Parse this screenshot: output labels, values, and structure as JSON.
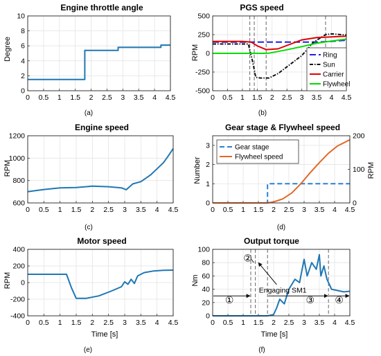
{
  "panels": [
    {
      "id": "a",
      "label": "(a)",
      "title": "Engine throttle angle",
      "ylabel": "Degree",
      "ylabel2": "",
      "xlabel": ""
    },
    {
      "id": "b",
      "label": "(b)",
      "title": "PGS speed",
      "ylabel": "RPM",
      "ylabel2": "",
      "xlabel": ""
    },
    {
      "id": "c",
      "label": "(c)",
      "title": "Engine speed",
      "ylabel": "RPM",
      "ylabel2": "",
      "xlabel": ""
    },
    {
      "id": "d",
      "label": "(d)",
      "title": "Gear stage & Flywheel speed",
      "ylabel": "Number",
      "ylabel2": "RPM",
      "xlabel": ""
    },
    {
      "id": "e",
      "label": "(e)",
      "title": "Motor speed",
      "ylabel": "RPM",
      "ylabel2": "",
      "xlabel": "Time [s]"
    },
    {
      "id": "f",
      "label": "(f)",
      "title": "Output torque",
      "ylabel": "Nm",
      "ylabel2": "",
      "xlabel": "Time [s]"
    }
  ],
  "chart_data": [
    {
      "type": "line",
      "panel": "a",
      "title": "Engine throttle angle",
      "xlabel": "",
      "ylabel": "Degree",
      "xlim": [
        0,
        4.5
      ],
      "ylim": [
        0,
        10
      ],
      "xticks": [
        "0",
        "0.5",
        "1",
        "1.5",
        "2",
        "2.5",
        "3",
        "3.5",
        "4",
        "4.5"
      ],
      "yticks": [
        "0",
        "2",
        "4",
        "6",
        "8",
        "10"
      ],
      "grid": true,
      "legend": "none",
      "series": [
        {
          "color": "#1f77b4",
          "dash": "",
          "x": [
            0,
            1.8,
            1.8,
            2.85,
            2.85,
            4.2,
            4.2,
            4.5
          ],
          "y": [
            1.5,
            1.5,
            5.4,
            5.4,
            5.8,
            5.8,
            6.1,
            6.1
          ]
        }
      ]
    },
    {
      "type": "line",
      "panel": "b",
      "title": "PGS speed",
      "xlabel": "",
      "ylabel": "RPM",
      "xlim": [
        0,
        4.5
      ],
      "ylim": [
        -500,
        500
      ],
      "xticks": [
        "0",
        "0.5",
        "1",
        "1.5",
        "2",
        "2.5",
        "3",
        "3.5",
        "4",
        "4.5"
      ],
      "yticks": [
        "-500",
        "-250",
        "0",
        "250",
        "500"
      ],
      "grid": true,
      "legend": "lower-right",
      "vlines": [
        1.25,
        1.4,
        1.8,
        3.8
      ],
      "series": [
        {
          "name": "Ring",
          "color": "#1f1fe0",
          "dash": "9 4",
          "x": [
            0,
            1.4,
            2.0,
            2.5,
            3.0,
            3.5,
            4.0,
            4.5
          ],
          "y": [
            150,
            150,
            150,
            150,
            150,
            150,
            160,
            175
          ]
        },
        {
          "name": "Sun",
          "color": "#111111",
          "dash": "5 2 1.5 2",
          "x": [
            0,
            1.2,
            1.35,
            1.45,
            1.6,
            1.9,
            2.2,
            2.6,
            3.0,
            3.2,
            3.4,
            3.6,
            3.8,
            4.0,
            4.5
          ],
          "y": [
            125,
            125,
            -120,
            -320,
            -330,
            -330,
            -270,
            -150,
            -30,
            60,
            150,
            200,
            250,
            260,
            245
          ]
        },
        {
          "name": "Carrier",
          "color": "#e00000",
          "dash": "",
          "x": [
            0,
            0.5,
            1.0,
            1.3,
            1.5,
            1.8,
            2.2,
            2.6,
            3.0,
            3.5,
            4.0,
            4.5
          ],
          "y": [
            160,
            160,
            160,
            150,
            100,
            50,
            60,
            120,
            180,
            210,
            220,
            230
          ]
        },
        {
          "name": "Flywheel",
          "color": "#00dd00",
          "dash": "",
          "x": [
            0,
            1.7,
            1.9,
            2.4,
            3.0,
            3.5,
            4.0,
            4.5
          ],
          "y": [
            0,
            0,
            3,
            40,
            90,
            135,
            165,
            190
          ]
        }
      ]
    },
    {
      "type": "line",
      "panel": "c",
      "title": "Engine speed",
      "xlabel": "",
      "ylabel": "RPM",
      "xlim": [
        0,
        4.5
      ],
      "ylim": [
        600,
        1200
      ],
      "xticks": [
        "0",
        "0.5",
        "1",
        "1.5",
        "2",
        "2.5",
        "3",
        "3.5",
        "4",
        "4.5"
      ],
      "yticks": [
        "600",
        "800",
        "1000",
        "1200"
      ],
      "grid": true,
      "legend": "none",
      "series": [
        {
          "color": "#1f77b4",
          "dash": "",
          "x": [
            0,
            0.5,
            1.0,
            1.5,
            2.0,
            2.5,
            2.9,
            3.05,
            3.25,
            3.5,
            3.8,
            4.0,
            4.2,
            4.35,
            4.5
          ],
          "y": [
            700,
            720,
            735,
            738,
            750,
            745,
            735,
            718,
            770,
            790,
            850,
            905,
            960,
            1020,
            1085
          ]
        }
      ]
    },
    {
      "type": "line",
      "panel": "d",
      "title": "Gear stage & Flywheel speed",
      "xlabel": "",
      "ylabel": "Number",
      "ylabel2": "RPM",
      "xlim": [
        0,
        4.5
      ],
      "ylim": [
        0,
        3.5
      ],
      "ylim2": [
        0,
        200
      ],
      "xticks": [
        "0",
        "0.5",
        "1",
        "1.5",
        "2",
        "2.5",
        "3",
        "3.5",
        "4",
        "4.5"
      ],
      "yticks": [
        "0",
        "1",
        "2",
        "3"
      ],
      "yticks2": [
        "0",
        "100",
        "200"
      ],
      "grid": true,
      "legend": "upper-left",
      "series": [
        {
          "name": "Gear stage",
          "axis": "left",
          "color": "#2a7fd4",
          "dash": "7 4",
          "x": [
            0,
            1.8,
            1.8,
            4.5
          ],
          "y": [
            0,
            0,
            1,
            1
          ]
        },
        {
          "name": "Flywheel speed",
          "axis": "right",
          "color": "#e06a27",
          "dash": "",
          "x": [
            0,
            1.8,
            2.0,
            2.3,
            2.6,
            2.9,
            3.2,
            3.5,
            3.8,
            4.1,
            4.5
          ],
          "y": [
            0,
            0,
            3,
            12,
            30,
            58,
            90,
            120,
            148,
            170,
            188
          ]
        }
      ]
    },
    {
      "type": "line",
      "panel": "e",
      "title": "Motor speed",
      "xlabel": "Time [s]",
      "ylabel": "RPM",
      "xlim": [
        0,
        4.5
      ],
      "ylim": [
        -400,
        400
      ],
      "xticks": [
        "0",
        "0.5",
        "1",
        "1.5",
        "2",
        "2.5",
        "3",
        "3.5",
        "4",
        "4.5"
      ],
      "yticks": [
        "-400",
        "-200",
        "0",
        "200",
        "400"
      ],
      "grid": true,
      "legend": "none",
      "series": [
        {
          "color": "#1f77b4",
          "dash": "",
          "x": [
            0,
            1.2,
            1.35,
            1.5,
            1.8,
            2.2,
            2.6,
            2.9,
            3.0,
            3.1,
            3.2,
            3.3,
            3.4,
            3.6,
            3.9,
            4.2,
            4.5
          ],
          "y": [
            100,
            100,
            -60,
            -190,
            -190,
            -160,
            -100,
            -50,
            10,
            -20,
            40,
            -10,
            80,
            120,
            140,
            148,
            150
          ]
        }
      ]
    },
    {
      "type": "line",
      "panel": "f",
      "title": "Output torque",
      "xlabel": "Time [s]",
      "ylabel": "Nm",
      "xlim": [
        0,
        4.5
      ],
      "ylim": [
        0,
        100
      ],
      "xticks": [
        "0",
        "0.5",
        "1",
        "1.5",
        "2",
        "2.5",
        "3",
        "3.5",
        "4",
        "4.5"
      ],
      "yticks": [
        "0",
        "20",
        "40",
        "60",
        "80",
        "100"
      ],
      "grid": true,
      "legend": "none",
      "vlines": [
        1.25,
        1.4,
        1.8,
        3.8
      ],
      "annotations": [
        "①",
        "②",
        "③",
        "④",
        "Engaging SM1"
      ],
      "series": [
        {
          "color": "#1f77b4",
          "dash": "",
          "x": [
            0,
            1.8,
            2.0,
            2.1,
            2.2,
            2.35,
            2.5,
            2.7,
            2.85,
            3.0,
            3.1,
            3.25,
            3.4,
            3.5,
            3.55,
            3.65,
            3.75,
            3.9,
            4.1,
            4.3,
            4.5
          ],
          "y": [
            0,
            0,
            2,
            12,
            25,
            18,
            40,
            55,
            50,
            85,
            60,
            80,
            70,
            92,
            60,
            75,
            55,
            40,
            38,
            36,
            37
          ]
        }
      ]
    }
  ]
}
